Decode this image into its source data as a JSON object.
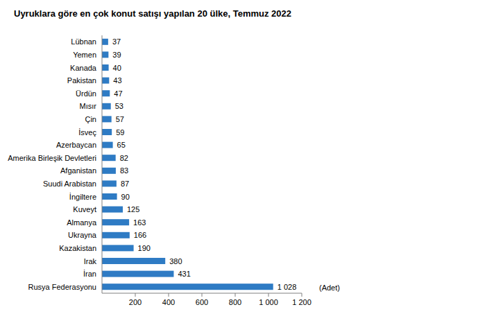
{
  "chart_data": {
    "type": "bar",
    "orientation": "horizontal",
    "title": "Uyruklara göre en çok konut satışı yapılan 20 ülke, Temmuz 2022",
    "xlabel": "(Adet)",
    "categories": [
      "Lübnan",
      "Yemen",
      "Kanada",
      "Pakistan",
      "Ürdün",
      "Mısır",
      "Çin",
      "İsveç",
      "Azerbaycan",
      "Amerika Birleşik Devletleri",
      "Afganistan",
      "Suudi Arabistan",
      "İngiltere",
      "Kuveyt",
      "Almanya",
      "Ukrayna",
      "Kazakistan",
      "Irak",
      "İran",
      "Rusya Federasyonu"
    ],
    "values": [
      37,
      39,
      40,
      43,
      47,
      53,
      57,
      59,
      65,
      82,
      83,
      87,
      90,
      125,
      163,
      166,
      190,
      380,
      431,
      1028
    ],
    "value_labels": [
      "37",
      "39",
      "40",
      "43",
      "47",
      "53",
      "57",
      "59",
      "65",
      "82",
      "83",
      "87",
      "90",
      "125",
      "163",
      "166",
      "190",
      "380",
      "431",
      "1 028"
    ],
    "color": "#2e7bc4",
    "xlim": [
      0,
      1200
    ],
    "xticks": [
      200,
      400,
      600,
      800,
      {
        "value": 1000,
        "label": "1 000"
      },
      {
        "value": 1200,
        "label": "1 200"
      }
    ],
    "grid": false,
    "data_labels": true
  }
}
